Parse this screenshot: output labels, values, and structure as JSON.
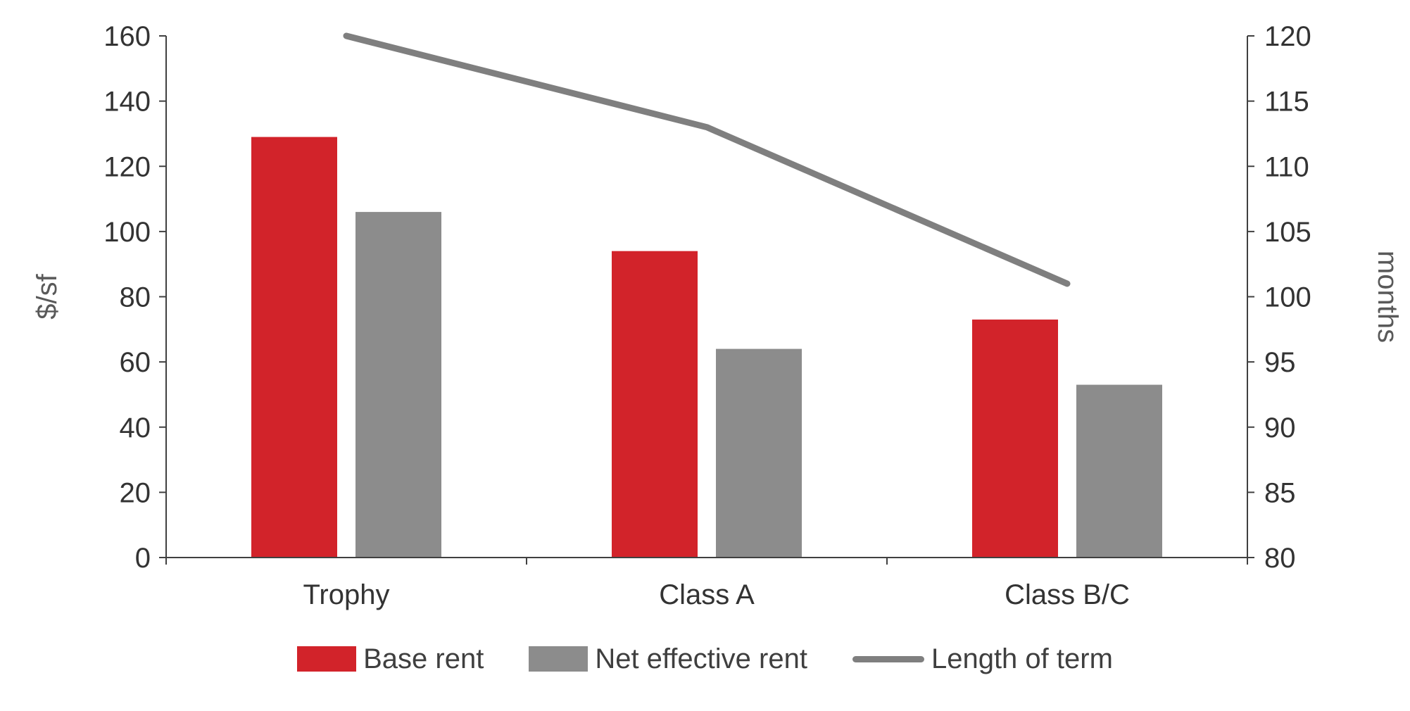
{
  "chart_data": {
    "type": "combo-bar-line",
    "title": "",
    "categories": [
      "Trophy",
      "Class A",
      "Class B/C"
    ],
    "series": [
      {
        "name": "Base rent",
        "type": "bar",
        "axis": "left",
        "color": "#D2232A",
        "values": [
          129,
          94,
          73
        ]
      },
      {
        "name": "Net effective rent",
        "type": "bar",
        "axis": "left",
        "color": "#8C8C8C",
        "values": [
          106,
          64,
          53
        ]
      },
      {
        "name": "Length of term",
        "type": "line",
        "axis": "right",
        "color": "#7F7F7F",
        "values": [
          120,
          113,
          101
        ]
      }
    ],
    "left_axis": {
      "label": "$/sf",
      "min": 0,
      "max": 160,
      "step": 20,
      "ticks": [
        0,
        20,
        40,
        60,
        80,
        100,
        120,
        140,
        160
      ]
    },
    "right_axis": {
      "label": "months",
      "min": 80,
      "max": 120,
      "step": 5,
      "ticks": [
        80,
        85,
        90,
        95,
        100,
        105,
        110,
        115,
        120
      ]
    },
    "legend_position": "bottom",
    "grid": false,
    "axis_color": "#404040",
    "text_color": "#333333",
    "axis_title_color": "#595959"
  }
}
